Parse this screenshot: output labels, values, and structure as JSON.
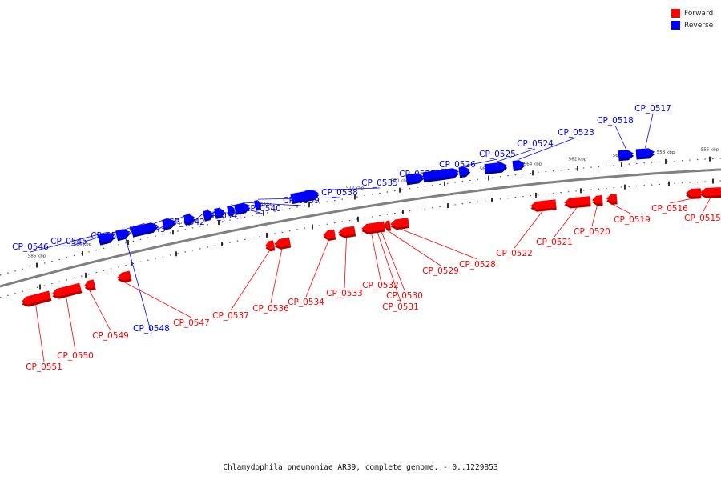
{
  "caption": "Chlamydophila pneumoniae AR39, complete genome. - 0..1229853",
  "legend": [
    {
      "label": "Forward",
      "color": "#ff0000"
    },
    {
      "label": "Reverse",
      "color": "#0000ff"
    }
  ],
  "colors": {
    "forward": "#ff0000",
    "reverse": "#0000ff",
    "backbone": "#808080"
  },
  "axis": {
    "unit": "kbp",
    "ticks": [
      "556 kbp",
      "558 kbp",
      "560 kbp",
      "562 kbp",
      "564 kbp",
      "566 kbp",
      "568 kbp",
      "570 kbp",
      "572 kbp",
      "574 kbp",
      "576 kbp",
      "578 kbp",
      "580 kbp",
      "582 kbp",
      "584 kbp",
      "586 kbp"
    ]
  },
  "reverse_genes": [
    "CP_0517",
    "CP_0518",
    "CP_0523",
    "CP_0524",
    "CP_0525",
    "CP_0526",
    "CP_0527",
    "CP_0535",
    "CP_0538",
    "CP_0539",
    "CP_0540",
    "CP_0541",
    "CP_0542",
    "CP_0543",
    "CP_0544",
    "CP_0545",
    "CP_0546",
    "CP_0548"
  ],
  "forward_genes": [
    "CP_0515",
    "CP_0516",
    "CP_0519",
    "CP_0520",
    "CP_0521",
    "CP_0522",
    "CP_0528",
    "CP_0529",
    "CP_0530",
    "CP_0531",
    "CP_0532",
    "CP_0533",
    "CP_0534",
    "CP_0536",
    "CP_0537",
    "CP_0547",
    "CP_0549",
    "CP_0550",
    "CP_0551"
  ]
}
